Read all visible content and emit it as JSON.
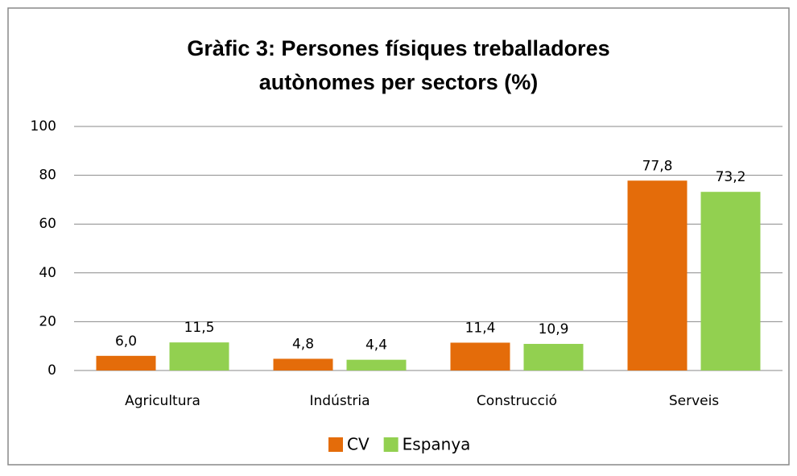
{
  "chart_data": {
    "type": "bar",
    "title": [
      "Gràfic 3: Persones físiques treballadores",
      "autònomes per sectors (%)"
    ],
    "categories": [
      "Agricultura",
      "Indústria",
      "Construcció",
      "Serveis"
    ],
    "series": [
      {
        "name": "CV",
        "color": "#e46c0a",
        "values": [
          6.0,
          4.8,
          11.4,
          77.8
        ],
        "value_labels": [
          "6,0",
          "4,8",
          "11,4",
          "77,8"
        ]
      },
      {
        "name": "Espanya",
        "color": "#92d050",
        "values": [
          11.5,
          4.4,
          10.9,
          73.2
        ],
        "value_labels": [
          "11,5",
          "4,4",
          "10,9",
          "73,2"
        ]
      }
    ],
    "ylim": [
      0,
      100
    ],
    "yticks": [
      0,
      20,
      40,
      60,
      80,
      100
    ],
    "grid": true,
    "legend": "bottom"
  }
}
